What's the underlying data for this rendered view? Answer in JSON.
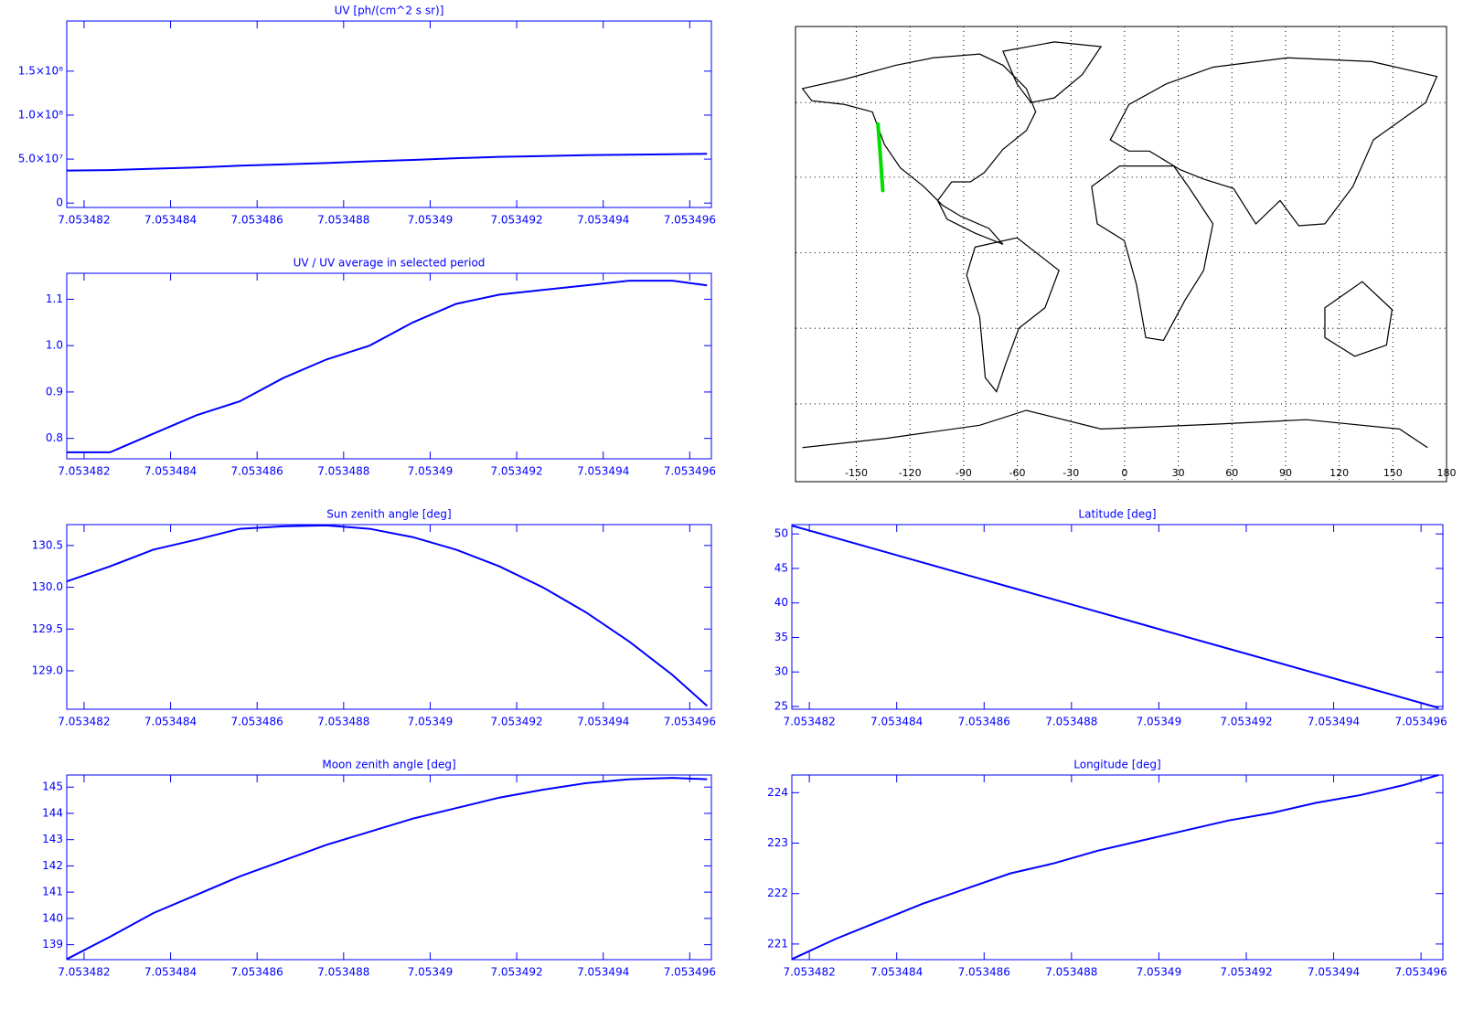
{
  "chart_data": [
    {
      "type": "line",
      "title": "UV [ph/(cm^2 s sr)]",
      "color": "#0000ff",
      "x": [
        7.0534816,
        7.0534826,
        7.0534836,
        7.0534846,
        7.0534856,
        7.0534866,
        7.0534876,
        7.0534886,
        7.0534896,
        7.0534906,
        7.0534916,
        7.0534926,
        7.0534936,
        7.0534946,
        7.0534956,
        7.0534964
      ],
      "values": [
        37000000,
        37500000,
        39000000,
        40500000,
        42500000,
        44000000,
        45500000,
        47500000,
        49000000,
        51000000,
        52500000,
        53500000,
        54500000,
        55000000,
        55500000,
        56000000
      ],
      "xlim": [
        7.0534816,
        7.0534965
      ],
      "ylim": [
        -5000000,
        207000000
      ],
      "xticks": [
        7.053482,
        7.053484,
        7.053486,
        7.053488,
        7.05349,
        7.053492,
        7.053494,
        7.053496
      ],
      "yticks": [
        0,
        {
          "value": 50000000,
          "label": "5.0×10⁷"
        },
        {
          "value": 100000000,
          "label": "1.0×10⁸"
        },
        {
          "value": 150000000,
          "label": "1.5×10⁸"
        }
      ]
    },
    {
      "type": "line",
      "title": "UV / UV average in selected period",
      "color": "#0000ff",
      "x": [
        7.0534816,
        7.0534826,
        7.0534836,
        7.0534846,
        7.0534856,
        7.0534866,
        7.0534876,
        7.0534886,
        7.0534896,
        7.0534906,
        7.0534916,
        7.0534926,
        7.0534936,
        7.0534946,
        7.0534956,
        7.0534964
      ],
      "values": [
        0.77,
        0.77,
        0.81,
        0.85,
        0.88,
        0.93,
        0.97,
        1.0,
        1.05,
        1.09,
        1.11,
        1.12,
        1.13,
        1.14,
        1.14,
        1.13
      ],
      "xlim": [
        7.0534816,
        7.0534965
      ],
      "ylim": [
        0.756,
        1.156
      ],
      "xticks": [
        7.053482,
        7.053484,
        7.053486,
        7.053488,
        7.05349,
        7.053492,
        7.053494,
        7.053496
      ],
      "yticks": [
        0.8,
        0.9,
        {
          "value": 1,
          "label": "1.0"
        },
        1.1
      ]
    },
    {
      "type": "line",
      "title": "Sun zenith angle [deg]",
      "color": "#0000ff",
      "x": [
        7.0534816,
        7.0534826,
        7.0534836,
        7.0534846,
        7.0534856,
        7.0534866,
        7.0534876,
        7.0534886,
        7.0534896,
        7.0534906,
        7.0534916,
        7.0534926,
        7.0534936,
        7.0534946,
        7.0534956,
        7.0534964
      ],
      "values": [
        130.07,
        130.25,
        130.45,
        130.57,
        130.7,
        130.73,
        130.74,
        130.7,
        130.6,
        130.45,
        130.25,
        130.0,
        129.7,
        129.35,
        128.95,
        128.58
      ],
      "xlim": [
        7.0534816,
        7.0534965
      ],
      "ylim": [
        128.54,
        130.75
      ],
      "xticks": [
        7.053482,
        7.053484,
        7.053486,
        7.053488,
        7.05349,
        7.053492,
        7.053494,
        7.053496
      ],
      "yticks": [
        {
          "value": 129,
          "label": "129.0"
        },
        129.5,
        {
          "value": 130,
          "label": "130.0"
        },
        130.5
      ]
    },
    {
      "type": "line",
      "title": "Moon zenith angle [deg]",
      "color": "#0000ff",
      "x": [
        7.0534816,
        7.0534826,
        7.0534836,
        7.0534846,
        7.0534856,
        7.0534866,
        7.0534876,
        7.0534886,
        7.0534896,
        7.0534906,
        7.0534916,
        7.0534926,
        7.0534936,
        7.0534946,
        7.0534956,
        7.0534964
      ],
      "values": [
        138.45,
        139.3,
        140.2,
        140.9,
        141.6,
        142.2,
        142.8,
        143.3,
        143.8,
        144.2,
        144.6,
        144.9,
        145.15,
        145.3,
        145.35,
        145.3
      ],
      "xlim": [
        7.0534816,
        7.0534965
      ],
      "ylim": [
        138.43,
        145.46
      ],
      "xticks": [
        7.053482,
        7.053484,
        7.053486,
        7.053488,
        7.05349,
        7.053492,
        7.053494,
        7.053496
      ],
      "yticks": [
        139,
        140,
        141,
        142,
        143,
        144,
        145
      ]
    },
    {
      "type": "map",
      "xlim": [
        -184,
        180
      ],
      "ylim": [
        -91,
        90
      ],
      "xticks": [
        -150,
        -120,
        -90,
        -60,
        -30,
        0,
        30,
        60,
        90,
        120,
        150,
        180
      ],
      "series": [
        {
          "color": "#00dd00",
          "x": [
            -137.9,
            -136.5,
            -135.2
          ],
          "values": [
            51.2,
            38,
            24.8
          ]
        }
      ]
    },
    {
      "type": "line",
      "title": "Latitude [deg]",
      "color": "#0000ff",
      "x": [
        7.0534816,
        7.0534826,
        7.0534836,
        7.0534846,
        7.0534856,
        7.0534866,
        7.0534876,
        7.0534886,
        7.0534896,
        7.0534906,
        7.0534916,
        7.0534926,
        7.0534936,
        7.0534946,
        7.0534956,
        7.0534964
      ],
      "values": [
        51.2,
        49.42,
        47.63,
        45.85,
        44.06,
        42.28,
        40.5,
        38.71,
        36.93,
        35.14,
        33.36,
        31.58,
        29.79,
        28.01,
        26.23,
        24.8
      ],
      "xlim": [
        7.0534816,
        7.0534965
      ],
      "ylim": [
        24.6,
        51.35
      ],
      "xticks": [
        7.053482,
        7.053484,
        7.053486,
        7.053488,
        7.05349,
        7.053492,
        7.053494,
        7.053496
      ],
      "yticks": [
        25,
        30,
        35,
        40,
        45,
        50
      ]
    },
    {
      "type": "line",
      "title": "Longitude [deg]",
      "color": "#0000ff",
      "x": [
        7.0534816,
        7.0534826,
        7.0534836,
        7.0534846,
        7.0534856,
        7.0534866,
        7.0534876,
        7.0534886,
        7.0534896,
        7.0534906,
        7.0534916,
        7.0534926,
        7.0534936,
        7.0534946,
        7.0534956,
        7.0534964
      ],
      "values": [
        220.7,
        221.1,
        221.45,
        221.8,
        222.1,
        222.4,
        222.6,
        222.85,
        223.05,
        223.25,
        223.45,
        223.6,
        223.8,
        223.95,
        224.15,
        224.35
      ],
      "xlim": [
        7.0534816,
        7.0534965
      ],
      "ylim": [
        220.69,
        224.35
      ],
      "xticks": [
        7.053482,
        7.053484,
        7.053486,
        7.053488,
        7.05349,
        7.053492,
        7.053494,
        7.053496
      ],
      "yticks": [
        221,
        222,
        223,
        224
      ]
    }
  ]
}
